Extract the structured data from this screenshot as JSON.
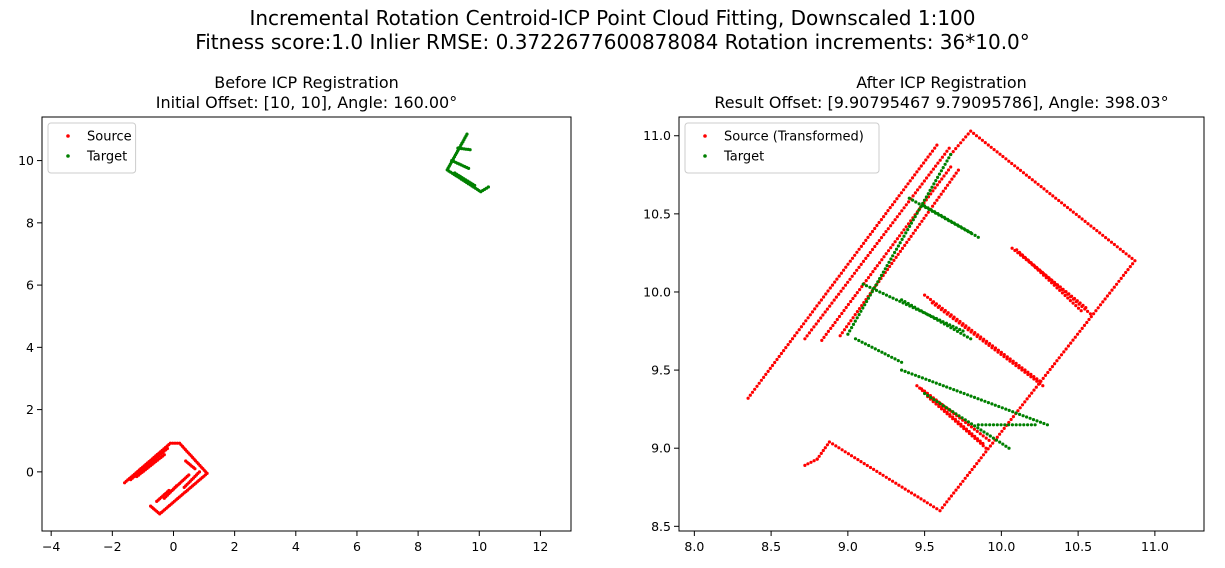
{
  "figure": {
    "suptitle_line1": "Incremental Rotation Centroid-ICP Point Cloud Fitting, Downscaled 1:100",
    "suptitle_line2": "Fitness score:1.0   Inlier RMSE: 0.3722677600878084  Rotation increments: 36*10.0°"
  },
  "chart_data": [
    {
      "type": "scatter",
      "title_line1": "Before ICP Registration",
      "title_line2": "Initial Offset: [10, 10], Angle: 160.00°",
      "xlim": [
        -4.3,
        13.0
      ],
      "ylim": [
        -1.9,
        11.4
      ],
      "xticks": [
        -4,
        -2,
        0,
        2,
        4,
        6,
        8,
        10,
        12
      ],
      "yticks": [
        0,
        2,
        4,
        6,
        8,
        10
      ],
      "legend_position": "top-left",
      "series": [
        {
          "name": "Source",
          "color": "#ff0000",
          "polylines": [
            [
              [
                -1.6,
                -0.35
              ],
              [
                -0.1,
                0.92
              ],
              [
                0.2,
                0.92
              ],
              [
                1.1,
                -0.05
              ],
              [
                -0.45,
                -1.35
              ],
              [
                -0.75,
                -1.1
              ]
            ],
            [
              [
                -1.4,
                -0.25
              ],
              [
                -0.2,
                0.75
              ]
            ],
            [
              [
                -1.2,
                -0.15
              ],
              [
                -0.3,
                0.55
              ]
            ],
            [
              [
                -0.55,
                -0.95
              ],
              [
                -0.15,
                -0.6
              ]
            ],
            [
              [
                -0.3,
                -0.85
              ],
              [
                0.1,
                -0.45
              ]
            ],
            [
              [
                -0.05,
                -0.6
              ],
              [
                0.5,
                -0.1
              ]
            ],
            [
              [
                0.35,
                -0.5
              ],
              [
                0.85,
                0.0
              ]
            ],
            [
              [
                0.4,
                0.35
              ],
              [
                0.7,
                0.1
              ]
            ]
          ]
        },
        {
          "name": "Target",
          "color": "#008000",
          "polylines": [
            [
              [
                9.6,
                10.85
              ],
              [
                8.95,
                9.7
              ],
              [
                10.05,
                9.0
              ],
              [
                10.3,
                9.15
              ]
            ],
            [
              [
                9.3,
                10.4
              ],
              [
                9.7,
                10.35
              ]
            ],
            [
              [
                9.1,
                10.0
              ],
              [
                9.65,
                9.75
              ]
            ],
            [
              [
                9.2,
                9.6
              ],
              [
                9.85,
                9.2
              ]
            ]
          ]
        }
      ]
    },
    {
      "type": "scatter",
      "title_line1": "After ICP Registration",
      "title_line2": "Result Offset: [9.90795467 9.79095786], Angle: 398.03°",
      "xlim": [
        7.9,
        11.32
      ],
      "ylim": [
        8.47,
        11.12
      ],
      "xticks": [
        8.0,
        8.5,
        9.0,
        9.5,
        10.0,
        10.5,
        11.0
      ],
      "xtick_labels": [
        "8.0",
        "8.5",
        "9.0",
        "9.5",
        "10.0",
        "10.5",
        "11.0"
      ],
      "yticks": [
        8.5,
        9.0,
        9.5,
        10.0,
        10.5,
        11.0
      ],
      "ytick_labels": [
        "8.5",
        "9.0",
        "9.5",
        "10.0",
        "10.5",
        "11.0"
      ],
      "legend_position": "top-left",
      "series": [
        {
          "name": "Source (Transformed)",
          "color": "#ff0000",
          "polylines": [
            [
              [
                8.35,
                9.32
              ],
              [
                9.58,
                10.94
              ]
            ],
            [
              [
                8.72,
                9.7
              ],
              [
                9.66,
                10.92
              ]
            ],
            [
              [
                8.83,
                9.69
              ],
              [
                9.67,
                10.8
              ]
            ],
            [
              [
                8.95,
                9.72
              ],
              [
                9.72,
                10.78
              ]
            ],
            [
              [
                9.67,
                10.88
              ],
              [
                9.8,
                11.03
              ],
              [
                10.87,
                10.2
              ],
              [
                9.6,
                8.6
              ],
              [
                8.88,
                9.04
              ],
              [
                8.8,
                8.93
              ]
            ],
            [
              [
                8.72,
                8.89
              ],
              [
                8.8,
                8.93
              ]
            ],
            [
              [
                9.5,
                9.98
              ],
              [
                10.25,
                9.43
              ]
            ],
            [
              [
                9.55,
                9.93
              ],
              [
                10.27,
                9.4
              ]
            ],
            [
              [
                9.45,
                9.4
              ],
              [
                9.88,
                9.03
              ]
            ],
            [
              [
                9.48,
                9.38
              ],
              [
                9.92,
                9.05
              ]
            ],
            [
              [
                9.52,
                9.33
              ],
              [
                9.9,
                9.0
              ]
            ],
            [
              [
                10.07,
                10.28
              ],
              [
                10.55,
                9.9
              ]
            ],
            [
              [
                10.1,
                10.27
              ],
              [
                10.52,
                9.88
              ]
            ],
            [
              [
                10.12,
                10.25
              ],
              [
                10.58,
                9.86
              ]
            ]
          ]
        },
        {
          "name": "Target",
          "color": "#008000",
          "polylines": [
            [
              [
                9.67,
                10.88
              ],
              [
                9.0,
                9.73
              ]
            ],
            [
              [
                9.4,
                10.6
              ],
              [
                9.85,
                10.35
              ]
            ],
            [
              [
                9.5,
                10.55
              ],
              [
                9.8,
                10.38
              ]
            ],
            [
              [
                9.05,
                9.7
              ],
              [
                9.35,
                9.55
              ]
            ],
            [
              [
                9.1,
                10.05
              ],
              [
                9.75,
                9.75
              ]
            ],
            [
              [
                9.35,
                9.95
              ],
              [
                9.8,
                9.7
              ]
            ],
            [
              [
                9.35,
                9.5
              ],
              [
                10.3,
                9.15
              ]
            ],
            [
              [
                9.5,
                9.35
              ],
              [
                10.05,
                9.0
              ]
            ],
            [
              [
                9.85,
                9.15
              ],
              [
                10.22,
                9.15
              ]
            ]
          ]
        }
      ]
    }
  ]
}
